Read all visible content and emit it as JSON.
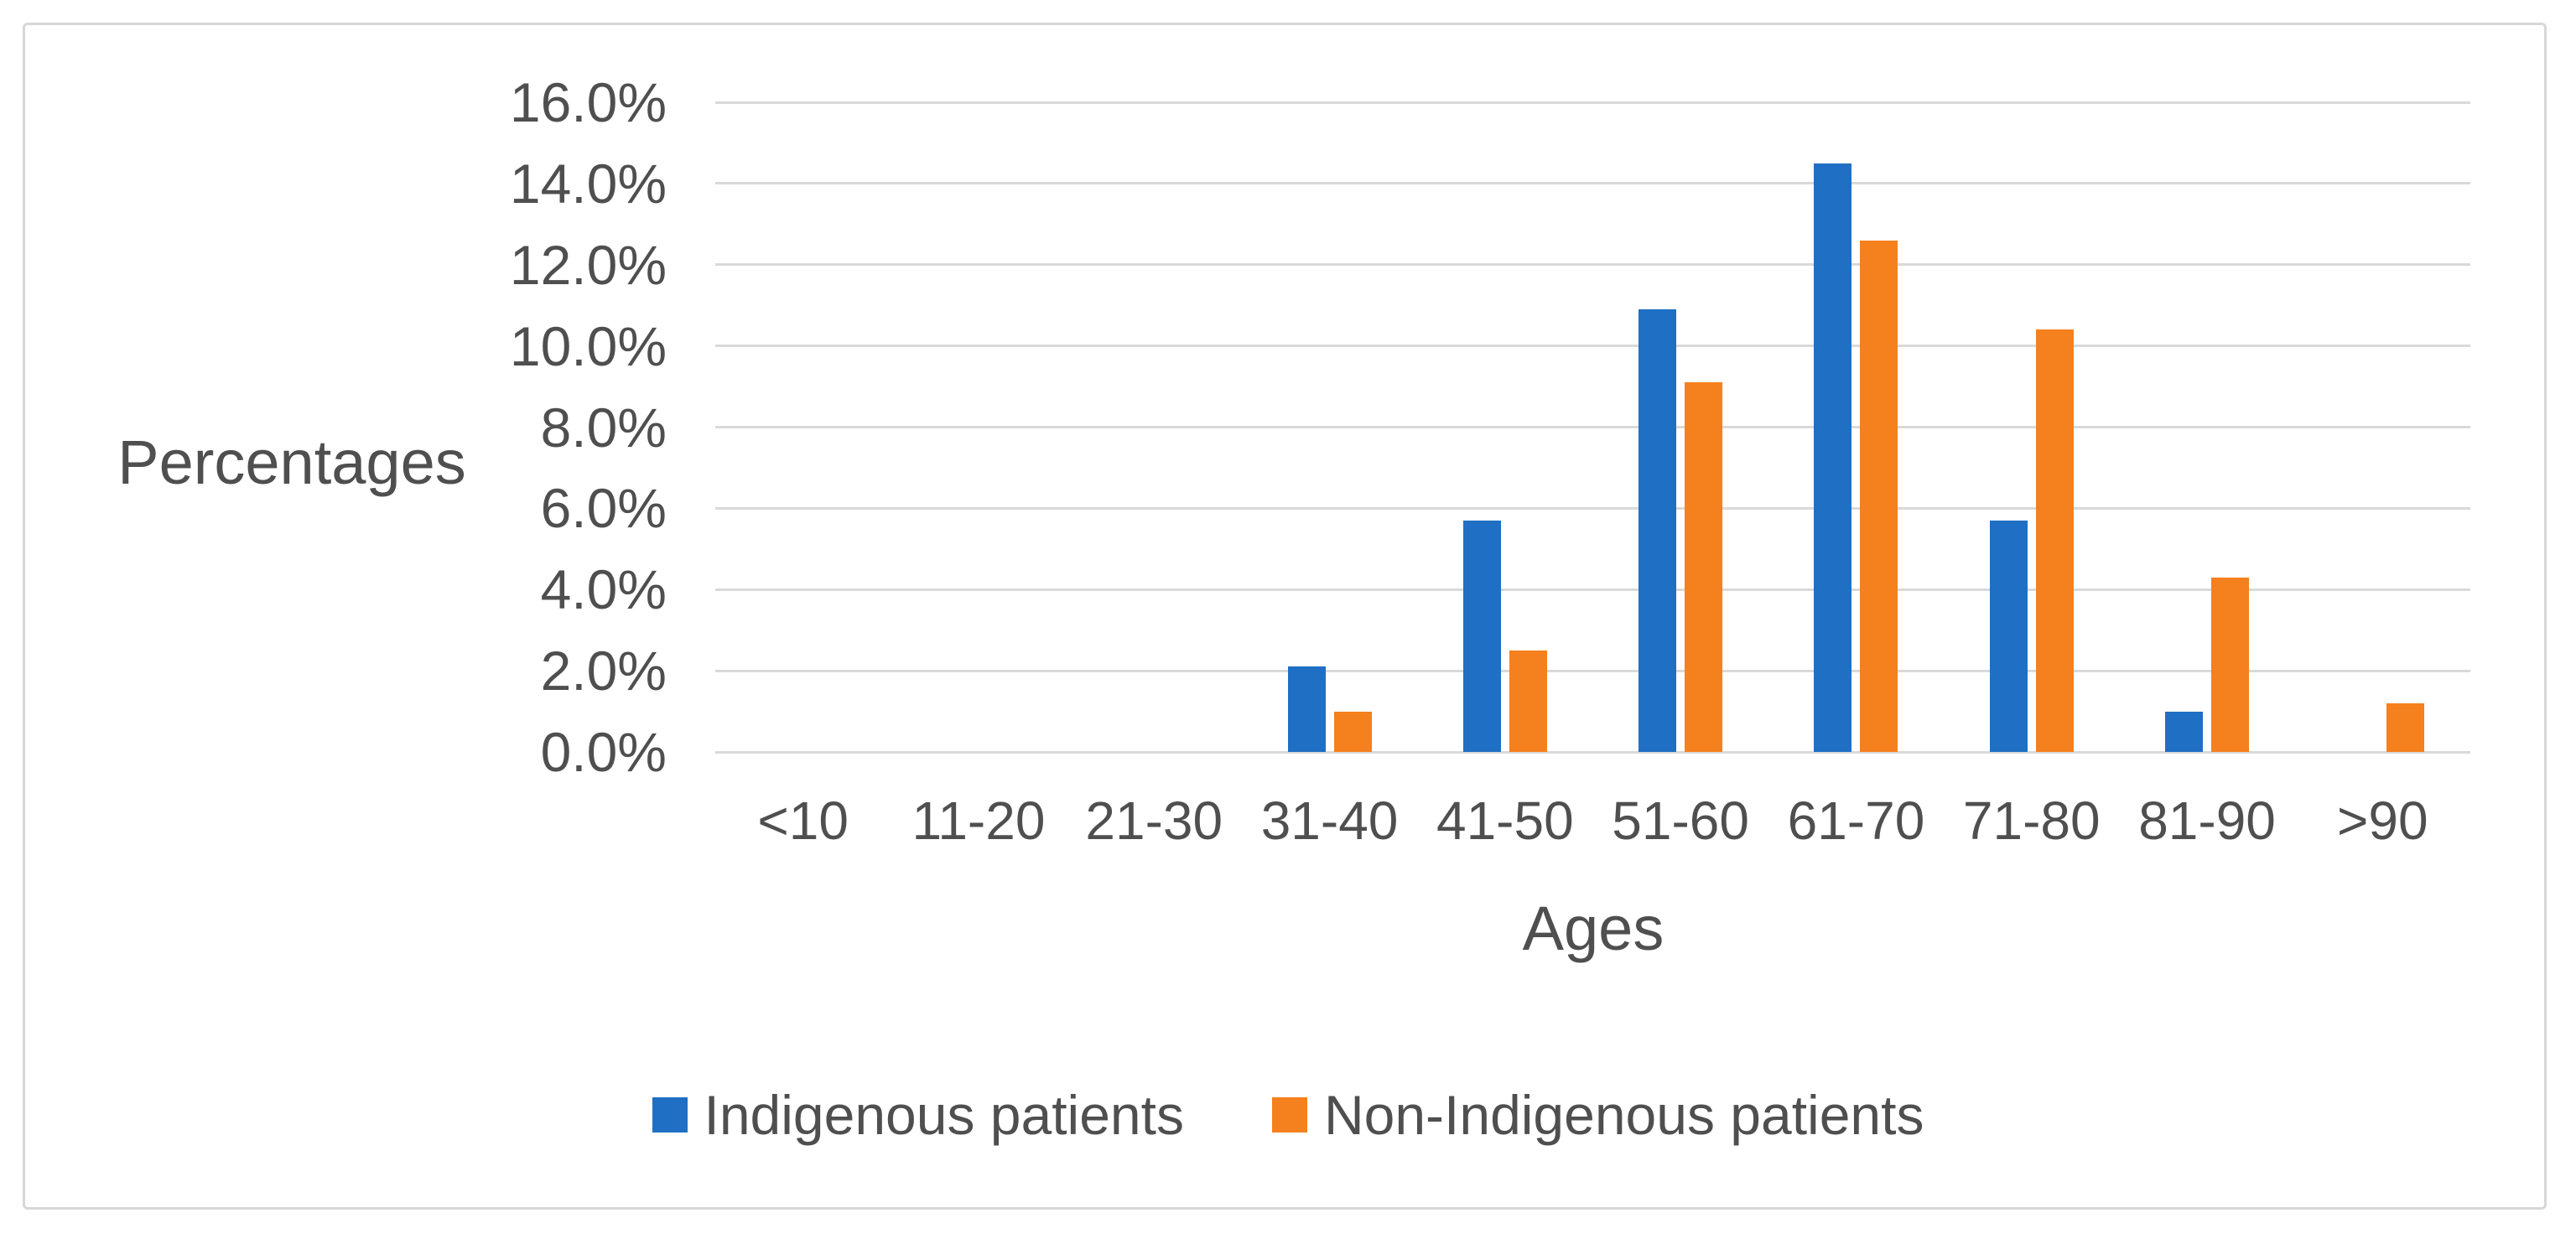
{
  "chart_data": {
    "type": "bar",
    "title": "",
    "xlabel": "Ages",
    "ylabel": "Percentages",
    "categories": [
      "<10",
      "11-20",
      "21-30",
      "31-40",
      "41-50",
      "51-60",
      "61-70",
      "71-80",
      "81-90",
      ">90"
    ],
    "series": [
      {
        "name": "Indigenous patients",
        "color": "#1f6fc4",
        "values": [
          0,
          0,
          0,
          2.1,
          5.7,
          10.9,
          14.5,
          5.7,
          1.0,
          0
        ]
      },
      {
        "name": "Non-Indigenous patients",
        "color": "#f5801e",
        "values": [
          0,
          0,
          0,
          1.0,
          2.5,
          9.1,
          12.6,
          10.4,
          4.3,
          1.2
        ]
      }
    ],
    "y_tick_labels": [
      "16.0%",
      "14.0%",
      "12.0%",
      "10.0%",
      "8.0%",
      "6.0%",
      "4.0%",
      "2.0%",
      "0.0%"
    ],
    "ylim": [
      0,
      16
    ],
    "ytick_step": 2,
    "grid": true,
    "legend_position": "bottom",
    "colors": {
      "gridline": "#d9d9d9",
      "text": "#4f4f4f",
      "figure_border": "#d7d7d7",
      "background": "#ffffff"
    }
  }
}
